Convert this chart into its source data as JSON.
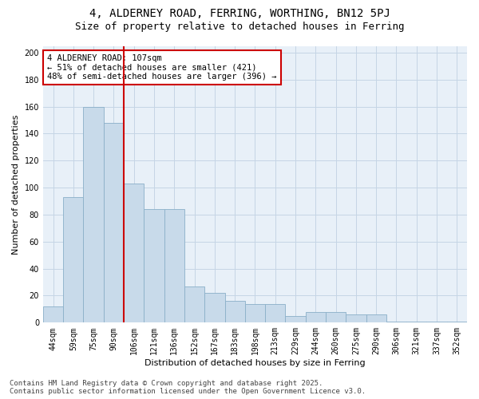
{
  "title_line1": "4, ALDERNEY ROAD, FERRING, WORTHING, BN12 5PJ",
  "title_line2": "Size of property relative to detached houses in Ferring",
  "xlabel": "Distribution of detached houses by size in Ferring",
  "ylabel": "Number of detached properties",
  "categories": [
    "44sqm",
    "59sqm",
    "75sqm",
    "90sqm",
    "106sqm",
    "121sqm",
    "136sqm",
    "152sqm",
    "167sqm",
    "183sqm",
    "198sqm",
    "213sqm",
    "229sqm",
    "244sqm",
    "260sqm",
    "275sqm",
    "290sqm",
    "306sqm",
    "321sqm",
    "337sqm",
    "352sqm"
  ],
  "values": [
    12,
    93,
    160,
    148,
    103,
    84,
    84,
    27,
    22,
    16,
    14,
    14,
    5,
    8,
    8,
    6,
    6,
    1,
    1,
    1,
    1
  ],
  "bar_color": "#c8daea",
  "bar_edge_color": "#8aafc8",
  "highlight_index": 4,
  "highlight_line_color": "#cc0000",
  "annotation_text": "4 ALDERNEY ROAD: 107sqm\n← 51% of detached houses are smaller (421)\n48% of semi-detached houses are larger (396) →",
  "annotation_box_color": "#cc0000",
  "ylim": [
    0,
    205
  ],
  "yticks": [
    0,
    20,
    40,
    60,
    80,
    100,
    120,
    140,
    160,
    180,
    200
  ],
  "grid_color": "#c5d5e5",
  "background_color": "#e8f0f8",
  "footer_text": "Contains HM Land Registry data © Crown copyright and database right 2025.\nContains public sector information licensed under the Open Government Licence v3.0.",
  "title_fontsize": 10,
  "subtitle_fontsize": 9,
  "axis_label_fontsize": 8,
  "tick_fontsize": 7,
  "annotation_fontsize": 7.5,
  "footer_fontsize": 6.5
}
